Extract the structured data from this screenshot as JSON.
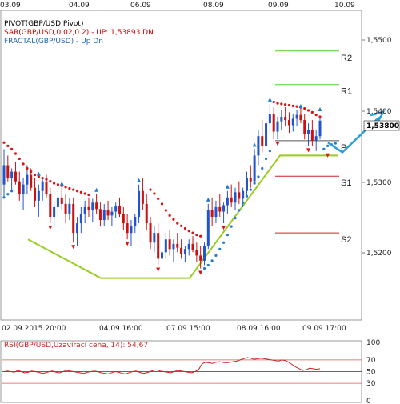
{
  "chart_data": {
    "type": "candlestick",
    "symbol": "GBP/USD",
    "legend": [
      {
        "text": "PIVOT(GBP/USD,Pivot)",
        "color": "#000000"
      },
      {
        "text": "SAR(GBP/USD,0.02,0.2) -  UP: 1,53893  DN",
        "color": "#cc0000"
      },
      {
        "text": "FRACTAL(GBP/USD) -  Up  Dn",
        "color": "#2266bb"
      }
    ],
    "top_dates": [
      "03.09",
      "04.09",
      "06.09",
      "08.09",
      "09.09",
      "10.09"
    ],
    "bottom_dates": [
      "02.09.2015 20:00",
      "04.09 16:00",
      "07.09 15:00",
      "08.09 16:00",
      "09.09 17:00"
    ],
    "price_ticks": [
      "1,5500",
      "1,5400",
      "1,5300",
      "1,5200"
    ],
    "current_price": "1,53800",
    "pivot_levels": [
      {
        "name": "R2",
        "value": 1.5497,
        "color": "#55cc33"
      },
      {
        "name": "R1",
        "value": 1.5445,
        "color": "#55cc33"
      },
      {
        "name": "P",
        "value": 1.5358,
        "color": "#555555"
      },
      {
        "name": "S1",
        "value": 1.5303,
        "color": "#cc2222"
      },
      {
        "name": "S2",
        "value": 1.5215,
        "color": "#cc2222"
      }
    ],
    "y_range": [
      1.508,
      1.556
    ],
    "up_color": "#2255cc",
    "down_color": "#cc1111",
    "sar_color_red": "#dd1111",
    "sar_color_blue": "#1f7ad4",
    "trend_line_color": "#99cc22",
    "forecast_arrow_color": "#2a9fd8",
    "candles": [
      [
        1.529,
        1.5345,
        1.527,
        1.532
      ],
      [
        1.532,
        1.5335,
        1.5295,
        1.53
      ],
      [
        1.53,
        1.5315,
        1.528,
        1.531
      ],
      [
        1.531,
        1.5325,
        1.529,
        1.5295
      ],
      [
        1.5295,
        1.531,
        1.5265,
        1.5275
      ],
      [
        1.5275,
        1.53,
        1.525,
        1.529
      ],
      [
        1.529,
        1.532,
        1.5275,
        1.5305
      ],
      [
        1.5305,
        1.5315,
        1.528,
        1.5285
      ],
      [
        1.5285,
        1.53,
        1.5255,
        1.5265
      ],
      [
        1.5265,
        1.529,
        1.524,
        1.528
      ],
      [
        1.528,
        1.53,
        1.5265,
        1.5295
      ],
      [
        1.5295,
        1.5305,
        1.527,
        1.5275
      ],
      [
        1.5275,
        1.5285,
        1.523,
        1.524
      ],
      [
        1.524,
        1.5265,
        1.5225,
        1.5255
      ],
      [
        1.5255,
        1.528,
        1.524,
        1.527
      ],
      [
        1.527,
        1.5285,
        1.525,
        1.526
      ],
      [
        1.526,
        1.5275,
        1.523,
        1.5245
      ],
      [
        1.5245,
        1.527,
        1.5235,
        1.526
      ],
      [
        1.526,
        1.527,
        1.52,
        1.5215
      ],
      [
        1.5215,
        1.524,
        1.5195,
        1.523
      ],
      [
        1.523,
        1.5255,
        1.5215,
        1.5245
      ],
      [
        1.5245,
        1.5265,
        1.523,
        1.5255
      ],
      [
        1.5255,
        1.527,
        1.524,
        1.525
      ],
      [
        1.525,
        1.5268,
        1.5232,
        1.5262
      ],
      [
        1.5262,
        1.5275,
        1.5245,
        1.5252
      ],
      [
        1.5252,
        1.5262,
        1.5225,
        1.5235
      ],
      [
        1.5235,
        1.526,
        1.5225,
        1.525
      ],
      [
        1.525,
        1.5265,
        1.5235,
        1.5242
      ],
      [
        1.5242,
        1.5255,
        1.5225,
        1.5248
      ],
      [
        1.5248,
        1.5262,
        1.5238,
        1.5256
      ],
      [
        1.5256,
        1.527,
        1.524,
        1.5244
      ],
      [
        1.5244,
        1.5255,
        1.522,
        1.523
      ],
      [
        1.523,
        1.5245,
        1.5205,
        1.5215
      ],
      [
        1.5215,
        1.5235,
        1.5195,
        1.5225
      ],
      [
        1.5225,
        1.5245,
        1.5215,
        1.524
      ],
      [
        1.524,
        1.529,
        1.523,
        1.528
      ],
      [
        1.528,
        1.53,
        1.525,
        1.526
      ],
      [
        1.526,
        1.5275,
        1.522,
        1.523
      ],
      [
        1.523,
        1.524,
        1.519,
        1.52
      ],
      [
        1.52,
        1.5225,
        1.5185,
        1.5215
      ],
      [
        1.5215,
        1.523,
        1.5165,
        1.5175
      ],
      [
        1.5175,
        1.5195,
        1.515,
        1.5185
      ],
      [
        1.5185,
        1.5215,
        1.5175,
        1.5205
      ],
      [
        1.5205,
        1.522,
        1.518,
        1.519
      ],
      [
        1.519,
        1.5205,
        1.517,
        1.5198
      ],
      [
        1.5198,
        1.5215,
        1.5185,
        1.5192
      ],
      [
        1.5192,
        1.5205,
        1.5175,
        1.5182
      ],
      [
        1.5182,
        1.5195,
        1.517,
        1.519
      ],
      [
        1.519,
        1.5205,
        1.518,
        1.5198
      ],
      [
        1.5198,
        1.521,
        1.5185,
        1.5188
      ],
      [
        1.5188,
        1.52,
        1.517,
        1.518
      ],
      [
        1.518,
        1.5195,
        1.516,
        1.5172
      ],
      [
        1.5172,
        1.52,
        1.5165,
        1.5195
      ],
      [
        1.5195,
        1.526,
        1.519,
        1.525
      ],
      [
        1.525,
        1.527,
        1.5225,
        1.524
      ],
      [
        1.524,
        1.5265,
        1.523,
        1.5255
      ],
      [
        1.5255,
        1.5275,
        1.524,
        1.5248
      ],
      [
        1.5248,
        1.5262,
        1.523,
        1.5258
      ],
      [
        1.5258,
        1.528,
        1.5245,
        1.527
      ],
      [
        1.527,
        1.529,
        1.5255,
        1.5262
      ],
      [
        1.5262,
        1.5285,
        1.525,
        1.5278
      ],
      [
        1.5278,
        1.5295,
        1.526,
        1.5268
      ],
      [
        1.5268,
        1.5285,
        1.5255,
        1.528
      ],
      [
        1.528,
        1.531,
        1.527,
        1.53
      ],
      [
        1.53,
        1.532,
        1.5285,
        1.5295
      ],
      [
        1.5295,
        1.5345,
        1.529,
        1.5335
      ],
      [
        1.5335,
        1.5375,
        1.532,
        1.5365
      ],
      [
        1.5365,
        1.539,
        1.534,
        1.535
      ],
      [
        1.535,
        1.5395,
        1.5345,
        1.5385
      ],
      [
        1.5385,
        1.5415,
        1.537,
        1.54
      ],
      [
        1.54,
        1.541,
        1.536,
        1.5372
      ],
      [
        1.5372,
        1.5395,
        1.536,
        1.5388
      ],
      [
        1.5388,
        1.5405,
        1.5375,
        1.5395
      ],
      [
        1.5395,
        1.541,
        1.538,
        1.539
      ],
      [
        1.539,
        1.5402,
        1.537,
        1.5382
      ],
      [
        1.5382,
        1.54,
        1.5372,
        1.5392
      ],
      [
        1.5392,
        1.5405,
        1.538,
        1.5398
      ],
      [
        1.5398,
        1.5408,
        1.5385,
        1.539
      ],
      [
        1.539,
        1.54,
        1.536,
        1.5368
      ],
      [
        1.5368,
        1.5385,
        1.535,
        1.5375
      ],
      [
        1.5375,
        1.539,
        1.535,
        1.5358
      ],
      [
        1.5358,
        1.5375,
        1.5342,
        1.5365
      ],
      [
        1.5365,
        1.5395,
        1.536,
        1.5389
      ]
    ],
    "sar_red": [
      [
        0,
        1.5355
      ],
      [
        1,
        1.535
      ],
      [
        2,
        1.5345
      ],
      [
        3,
        1.5338
      ],
      [
        4,
        1.533
      ],
      [
        5,
        1.5322
      ],
      [
        6,
        1.5315
      ],
      [
        7,
        1.531
      ],
      [
        8,
        1.5305
      ],
      [
        9,
        1.5302
      ],
      [
        10,
        1.53
      ],
      [
        11,
        1.5298
      ],
      [
        12,
        1.5295
      ],
      [
        13,
        1.5292
      ],
      [
        14,
        1.529
      ],
      [
        15,
        1.5288
      ],
      [
        16,
        1.5286
      ],
      [
        17,
        1.5284
      ],
      [
        18,
        1.5282
      ],
      [
        19,
        1.528
      ],
      [
        20,
        1.5278
      ],
      [
        21,
        1.5276
      ],
      [
        22,
        1.5274
      ],
      [
        38,
        1.5282
      ],
      [
        39,
        1.5276
      ],
      [
        40,
        1.5268
      ],
      [
        41,
        1.526
      ],
      [
        42,
        1.525
      ],
      [
        43,
        1.5242
      ],
      [
        44,
        1.5236
      ],
      [
        45,
        1.523
      ],
      [
        46,
        1.5226
      ],
      [
        47,
        1.5222
      ],
      [
        48,
        1.5218
      ],
      [
        49,
        1.5215
      ],
      [
        50,
        1.5212
      ],
      [
        51,
        1.521
      ],
      [
        70,
        1.5418
      ],
      [
        71,
        1.5416
      ],
      [
        72,
        1.5415
      ],
      [
        73,
        1.5414
      ],
      [
        74,
        1.5413
      ],
      [
        75,
        1.5412
      ],
      [
        76,
        1.5411
      ],
      [
        77,
        1.541
      ],
      [
        78,
        1.5408
      ],
      [
        79,
        1.5405
      ],
      [
        80,
        1.5402
      ],
      [
        81,
        1.5398
      ],
      [
        82,
        1.5395
      ]
    ],
    "sar_blue": [
      [
        0,
        1.527
      ],
      [
        1,
        1.5275
      ],
      [
        2,
        1.528
      ],
      [
        52,
        1.516
      ],
      [
        53,
        1.5165
      ],
      [
        54,
        1.5172
      ],
      [
        55,
        1.518
      ],
      [
        56,
        1.519
      ],
      [
        57,
        1.52
      ],
      [
        58,
        1.5212
      ],
      [
        59,
        1.5225
      ],
      [
        60,
        1.5238
      ],
      [
        61,
        1.525
      ],
      [
        62,
        1.5262
      ],
      [
        63,
        1.5272
      ],
      [
        64,
        1.5282
      ],
      [
        65,
        1.5292
      ],
      [
        66,
        1.5302
      ],
      [
        67,
        1.5315
      ],
      [
        68,
        1.533
      ],
      [
        69,
        1.5342
      ],
      [
        83,
        1.5345
      ],
      [
        84,
        1.535
      ],
      [
        85,
        1.5352
      ],
      [
        86,
        1.5354
      ]
    ],
    "fractals_up": [
      [
        9,
        1.53
      ],
      [
        15,
        1.5285
      ],
      [
        24,
        1.5275
      ],
      [
        35,
        1.529
      ],
      [
        53,
        1.526
      ],
      [
        58,
        1.528
      ],
      [
        65,
        1.5345
      ],
      [
        69,
        1.5415
      ],
      [
        77,
        1.5405
      ],
      [
        82,
        1.54
      ]
    ],
    "fractals_dn": [
      [
        12,
        1.523
      ],
      [
        18,
        1.52
      ],
      [
        32,
        1.5205
      ],
      [
        40,
        1.5165
      ],
      [
        51,
        1.516
      ],
      [
        57,
        1.523
      ],
      [
        71,
        1.536
      ],
      [
        79,
        1.535
      ],
      [
        84,
        1.5342
      ]
    ],
    "trend_path": [
      [
        35,
        1.5205
      ],
      [
        126,
        1.5145
      ],
      [
        237,
        1.5145
      ],
      [
        350,
        1.5335
      ],
      [
        422,
        1.5335
      ]
    ],
    "forecast_path": [
      [
        410,
        1.5355
      ],
      [
        428,
        1.534
      ],
      [
        470,
        1.539
      ],
      [
        476,
        1.5395
      ]
    ],
    "rsi": {
      "label": "RSI(GBP/USD,Uzavírací cena, 14):  54,67",
      "ticks": [
        "100",
        "70",
        "50",
        "30",
        "0"
      ],
      "values": [
        50,
        51,
        50,
        49,
        52,
        50,
        48,
        49,
        51,
        50,
        49,
        47,
        48,
        50,
        51,
        49,
        48,
        50,
        52,
        51,
        50,
        49,
        48,
        47,
        49,
        50,
        51,
        50,
        48,
        47,
        46,
        48,
        50,
        49,
        47,
        46,
        48,
        50,
        51,
        49,
        47,
        48,
        50,
        52,
        53,
        51,
        50,
        49,
        48,
        50,
        52,
        51,
        50,
        49,
        48,
        50,
        53,
        63,
        66,
        65,
        64,
        66,
        67,
        66,
        65,
        66,
        67,
        68,
        70,
        72,
        74,
        73,
        71,
        72,
        73,
        72,
        71,
        70,
        69,
        68,
        70,
        69,
        66,
        62,
        58,
        55,
        52,
        53,
        56,
        55,
        54,
        55
      ]
    }
  }
}
